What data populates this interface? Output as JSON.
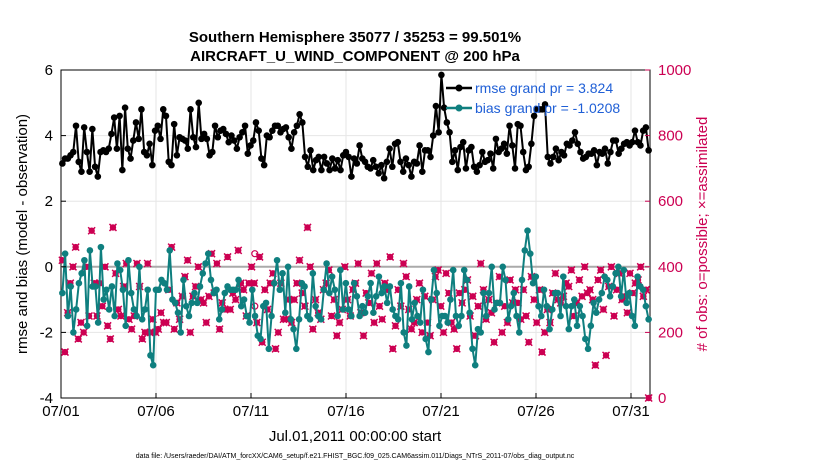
{
  "chart_data": {
    "type": "line",
    "title_line1": "Southern Hemisphere 35077 / 35253 = 99.501%",
    "title_line2": "AIRCRAFT_U_WIND_COMPONENT @ 200 hPa",
    "xlabel": "Jul.01,2011 00:00:00 start",
    "ylabel": "rmse and bias (model - observation)",
    "ylabel_right": "# of obs: o=possible; ×=assimilated",
    "xlim": [
      0,
      31
    ],
    "ylim": [
      -4,
      6
    ],
    "ylim_right": [
      0,
      1000
    ],
    "x_ticks": [
      0,
      5,
      10,
      15,
      20,
      25,
      30
    ],
    "x_tick_labels": [
      "07/01",
      "07/06",
      "07/11",
      "07/16",
      "07/21",
      "07/26",
      "07/31"
    ],
    "y_ticks": [
      -4,
      -2,
      0,
      2,
      4,
      6
    ],
    "y_tick_labels": [
      "-4",
      "-2",
      "0",
      "2",
      "4",
      "6"
    ],
    "y_ticks_right": [
      0,
      200,
      400,
      600,
      800,
      1000
    ],
    "y_tick_labels_right": [
      "0",
      "200",
      "400",
      "600",
      "800",
      "1000"
    ],
    "legend": [
      "rmse grand pr = 3.824",
      "bias grand pr = -1.0208"
    ],
    "footer": "data file: /Users/raeder/DAI/ATM_forcXX/CAM6_setup/f.e21.FHIST_BGC.f09_025.CAM6assim.011/Diags_NTrS_2011-07/obs_diag_output.nc",
    "series": [
      {
        "name": "rmse",
        "color": "#000000",
        "values": [
          3.15,
          3.3,
          3.3,
          3.4,
          3.5,
          4.3,
          3.2,
          2.9,
          4.25,
          3.5,
          2.9,
          4.2,
          3.05,
          2.75,
          3.5,
          3.55,
          3.5,
          3.6,
          4.05,
          4.55,
          3.6,
          4.6,
          2.95,
          4.85,
          3.6,
          3.3,
          3.85,
          4.4,
          3.9,
          4.8,
          3.5,
          3.4,
          3.75,
          3.1,
          4.15,
          4.3,
          3.9,
          4.8,
          4.6,
          3.2,
          3.1,
          4.35,
          3.4,
          3.95,
          3.9,
          3.85,
          3.6,
          4.8,
          3.95,
          3.65,
          5.0,
          3.9,
          4.05,
          3.9,
          3.4,
          3.5,
          4.3,
          3.95,
          4.15,
          4.2,
          4.05,
          3.8,
          4.0,
          3.85,
          3.6,
          3.95,
          4.1,
          4.3,
          3.45,
          3.7,
          3.85,
          4.4,
          4.15,
          3.3,
          3.1,
          4.0,
          3.95,
          4.15,
          4.3,
          4.3,
          4.1,
          4.2,
          4.25,
          3.95,
          3.6,
          4.1,
          4.3,
          4.65,
          4.4,
          3.35,
          3.05,
          3.55,
          2.95,
          3.25,
          3.35,
          2.95,
          3.35,
          3.15,
          2.95,
          3.3,
          3.0,
          3.25,
          2.95,
          3.4,
          3.5,
          3.35,
          2.75,
          3.3,
          3.15,
          3.7,
          3.3,
          3.2,
          3.05,
          3.0,
          3.25,
          3.05,
          2.85,
          3.1,
          2.7,
          3.2,
          3.6,
          3.05,
          3.75,
          3.8,
          3.2,
          2.9,
          3.3,
          3.1,
          2.75,
          3.2,
          3.15,
          3.7,
          2.9,
          3.55,
          3.55,
          3.35,
          4.0,
          4.9,
          4.1,
          5.85,
          4.85,
          4.4,
          4.1,
          3.2,
          3.55,
          2.95,
          3.65,
          3.8,
          3.0,
          3.55,
          3.65,
          3.05,
          2.9,
          3.1,
          3.5,
          3.2,
          3.25,
          3.45,
          3.0,
          3.9,
          3.5,
          3.6,
          3.75,
          3.45,
          4.3,
          3.7,
          3.0,
          4.35,
          4.3,
          3.5,
          2.95,
          3.05,
          3.75,
          4.6,
          4.8,
          4.8,
          4.8,
          4.95,
          3.35,
          3.15,
          3.35,
          3.6,
          3.25,
          3.5,
          3.4,
          3.75,
          3.7,
          3.85,
          4.1,
          3.75,
          3.5,
          3.3,
          3.35,
          3.45,
          3.45,
          3.55,
          3.1,
          3.5,
          3.45,
          3.6,
          3.15,
          3.5,
          3.85,
          3.85,
          3.45,
          3.6,
          3.75,
          3.8,
          3.7,
          3.8,
          4.15,
          3.8,
          3.7,
          4.15,
          4.25,
          3.55
        ]
      },
      {
        "name": "bias",
        "color": "#0f7f7f",
        "values": [
          -0.8,
          0.4,
          -1.5,
          -0.6,
          -2.0,
          -1.3,
          -0.5,
          -0.2,
          0.2,
          -1.8,
          0.5,
          -0.6,
          -0.6,
          -1.7,
          0.6,
          -1.0,
          -0.7,
          -1.3,
          -0.6,
          -1.5,
          0.1,
          -0.1,
          -0.7,
          -1.8,
          0.2,
          -0.8,
          -1.3,
          -1.5,
          0.0,
          -1.6,
          -1.3,
          -0.7,
          -2.7,
          -3.0,
          -0.7,
          -0.7,
          -0.4,
          -0.5,
          -0.7,
          0.5,
          -1.0,
          -1.1,
          -1.4,
          -2.0,
          -0.4,
          -1.2,
          -1.5,
          -1.1,
          -0.8,
          -1.1,
          -0.6,
          -0.2,
          0.1,
          0.4,
          -0.4,
          -0.8,
          -0.7,
          -1.6,
          -1.3,
          -0.8,
          -0.6,
          -0.7,
          -0.7,
          -0.7,
          -0.4,
          -1.2,
          -1.0,
          -1.5,
          -1.7,
          -0.7,
          -1.5,
          -2.1,
          -2.2,
          -1.2,
          -1.1,
          -2.5,
          -1.5,
          -0.5,
          0.2,
          -0.7,
          -0.2,
          -1.4,
          0.0,
          -1.6,
          -1.9,
          -2.5,
          -1.6,
          -0.5,
          -0.6,
          -1.5,
          -1.6,
          -0.2,
          -1.2,
          -1.5,
          -1.6,
          -0.7,
          0.1,
          -0.8,
          -0.3,
          -0.7,
          -1.5,
          -0.1,
          -1.3,
          -0.5,
          -1.3,
          -1.5,
          -0.5,
          -0.9,
          -1.5,
          -1.2,
          -1.4,
          -0.9,
          -0.5,
          -1.4,
          -0.9,
          -0.3,
          -0.8,
          -0.6,
          -1.1,
          -0.6,
          -1.3,
          -1.5,
          -1.6,
          -0.5,
          -2.0,
          -2.4,
          -0.6,
          -1.6,
          -1.1,
          -1.5,
          -1.7,
          -0.7,
          -2.2,
          -2.6,
          -1.0,
          -0.1,
          -0.8,
          -1.8,
          -1.5,
          -1.5,
          -1.7,
          -1.0,
          -0.1,
          -1.5,
          -1.8,
          -1.5,
          -0.1,
          -0.4,
          -1.4,
          -2.5,
          -3.0,
          -1.9,
          -2.0,
          -0.8,
          -1.5,
          -0.8,
          0.0,
          -1.3,
          -1.1,
          -1.1,
          0.0,
          -0.4,
          -1.6,
          -1.2,
          -0.8,
          -1.5,
          -2.0,
          -0.4,
          0.5,
          1.1,
          0.4,
          -0.5,
          -0.3,
          -1.2,
          -1.5,
          -0.7,
          -1.2,
          -1.9,
          -1.3,
          -0.8,
          -0.8,
          -1.5,
          -0.3,
          -1.2,
          -1.9,
          -1.2,
          -1.0,
          -1.8,
          -1.2,
          -1.5,
          -2.2,
          -2.5,
          -1.8,
          -1.1,
          -1.4,
          -1.0,
          -0.8,
          -0.3,
          -0.4,
          -0.9,
          -0.6,
          -0.2,
          0.0,
          -0.9,
          -0.1,
          -1.1,
          -0.8,
          -1.5,
          -1.8,
          -0.3,
          -0.6,
          -0.7,
          -1.2,
          -1.6
        ]
      },
      {
        "name": "# assimilated",
        "color": "#cc0052",
        "axis": "right",
        "values": [
          420,
          140,
          260,
          350,
          400,
          460,
          180,
          230,
          200,
          400,
          250,
          510,
          350,
          250,
          350,
          280,
          400,
          220,
          180,
          520,
          380,
          270,
          250,
          340,
          410,
          240,
          210,
          250,
          410,
          340,
          180,
          200,
          410,
          200,
          240,
          200,
          210,
          260,
          230,
          230,
          330,
          460,
          210,
          290,
          240,
          310,
          370,
          420,
          200,
          310,
          340,
          400,
          300,
          290,
          230,
          310,
          440,
          320,
          410,
          210,
          290,
          270,
          430,
          270,
          320,
          300,
          450,
          350,
          330,
          250,
          350,
          400,
          350,
          230,
          430,
          170,
          330,
          270,
          350,
          380,
          150,
          200,
          350,
          240,
          240,
          300,
          230,
          300,
          350,
          420,
          320,
          280,
          520,
          400,
          210,
          300,
          260,
          240,
          330,
          350,
          390,
          250,
          300,
          190,
          230,
          270,
          400,
          300,
          250,
          330,
          350,
          410,
          260,
          190,
          320,
          290,
          380,
          230,
          410,
          280,
          240,
          350,
          330,
          430,
          150,
          220,
          330,
          280,
          410,
          370,
          270,
          210,
          230,
          300,
          350,
          200,
          310,
          230,
          190,
          300,
          370,
          390,
          280,
          200,
          380,
          320,
          230,
          210,
          150,
          320,
          290,
          330,
          360,
          250,
          310,
          190,
          280,
          410,
          330,
          240,
          300,
          260,
          170,
          290,
          370,
          200,
          280,
          230,
          360,
          290,
          330,
          290,
          240,
          330,
          250,
          170,
          370,
          300,
          230,
          330,
          140,
          200,
          270,
          230,
          320,
          380,
          300,
          290,
          310,
          350,
          340,
          390,
          250,
          290,
          360,
          310,
          400,
          320,
          330,
          300,
          100,
          360,
          390,
          270,
          130,
          340,
          400,
          250,
          330,
          380,
          300,
          310,
          260,
          380,
          320,
          350,
          360,
          400,
          310,
          330,
          0
        ]
      }
    ],
    "possible_markers": [
      {
        "x": 10.2,
        "y": 280
      },
      {
        "x": 10.2,
        "y": 440
      }
    ]
  }
}
